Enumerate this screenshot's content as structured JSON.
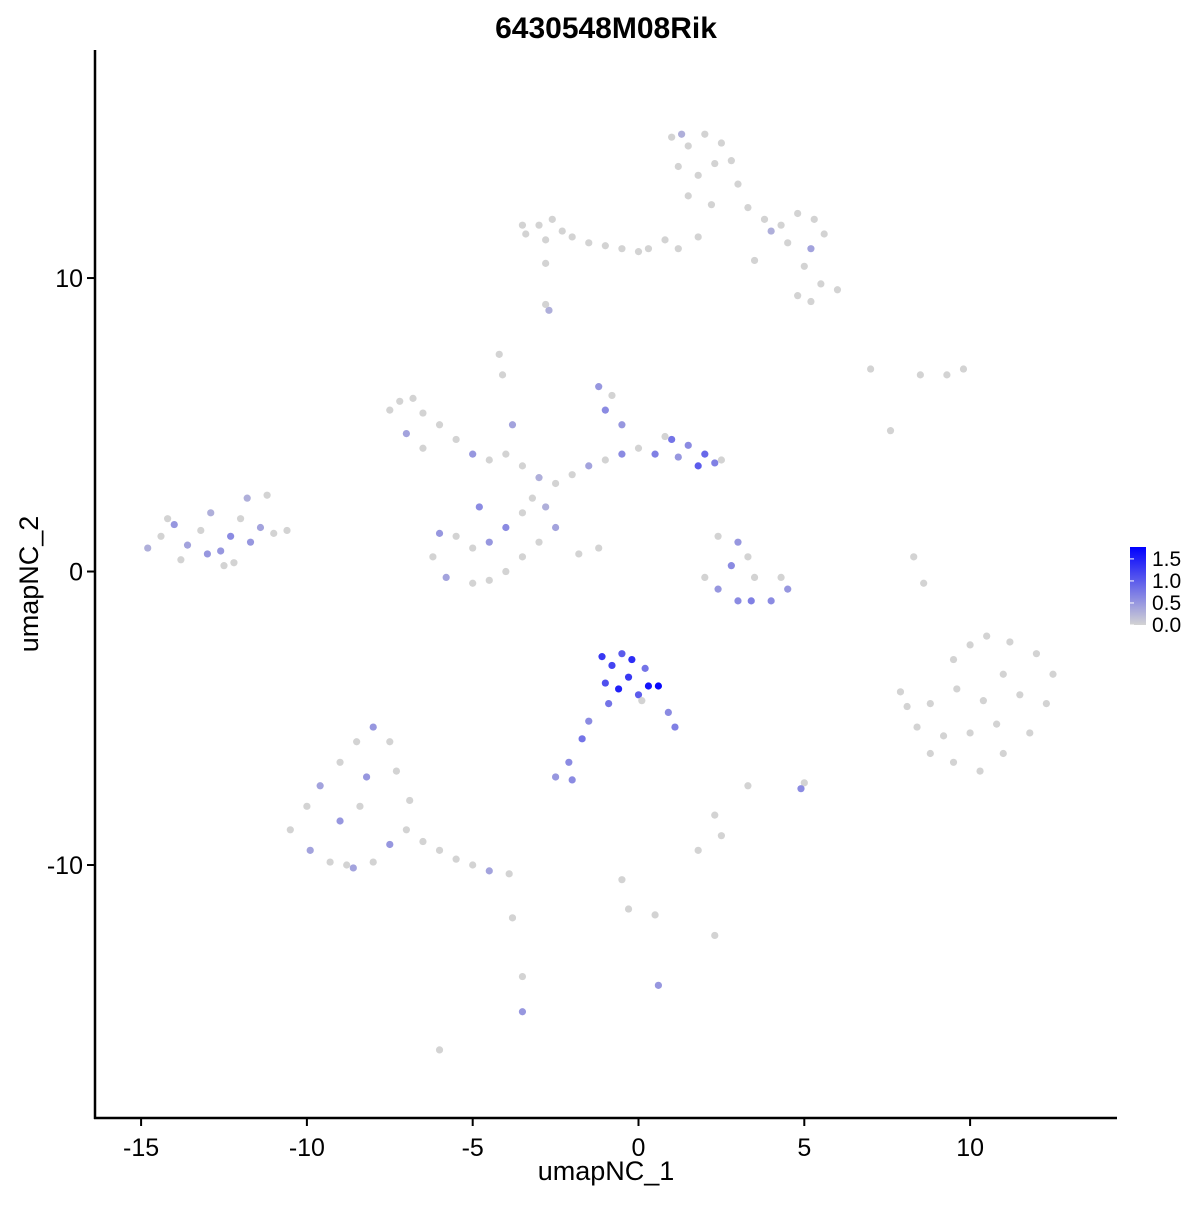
{
  "chart_data": {
    "type": "scatter",
    "title": "6430548M08Rik",
    "xlabel": "umapNC_1",
    "ylabel": "umapNC_2",
    "x": [
      1.0,
      1.5,
      2.0,
      2.5,
      1.2,
      1.8,
      2.3,
      2.8,
      1.5,
      2.2,
      3.0,
      3.3,
      3.8,
      4.3,
      4.8,
      5.3,
      5.6,
      4.5,
      5.2,
      4.0,
      5.0,
      5.5,
      6.0,
      4.8,
      5.2,
      1.2,
      1.8,
      0.8,
      3.5,
      1.3,
      -3.4,
      -3.0,
      -2.6,
      -2.8,
      -2.3,
      -2.0,
      -1.5,
      -1.0,
      -0.5,
      0.0,
      -2.8,
      -2.7,
      -2.8,
      0.3,
      -3.5,
      -7.5,
      -7.2,
      -6.8,
      -6.5,
      -6.0,
      -5.5,
      -7.0,
      -6.5,
      -5.0,
      -4.5,
      -4.0,
      -3.5,
      -3.0,
      -2.5,
      -2.0,
      -1.5,
      -1.0,
      -0.5,
      0.0,
      0.5,
      1.0,
      1.5,
      2.0,
      2.3,
      1.8,
      2.5,
      1.2,
      0.8,
      -1.0,
      -1.2,
      -0.8,
      -0.5,
      -4.2,
      -4.1,
      -3.8,
      -3.5,
      -4.0,
      -4.5,
      -5.0,
      -5.5,
      -6.0,
      -6.2,
      -5.8,
      -5.0,
      -4.5,
      -4.0,
      -3.5,
      -3.0,
      -3.2,
      -2.5,
      -1.8,
      -1.2,
      -2.8,
      -4.8,
      -14.8,
      -14.4,
      -14.0,
      -13.6,
      -13.2,
      -12.9,
      -12.6,
      -12.3,
      -12.0,
      -11.7,
      -11.4,
      -11.2,
      -11.0,
      -10.6,
      -13.8,
      -12.5,
      -13.0,
      -11.8,
      -14.2,
      -12.2,
      2.4,
      3.0,
      3.3,
      2.8,
      3.5,
      4.3,
      4.5,
      4.0,
      3.4,
      3.0,
      2.4,
      2.0,
      9.5,
      10.0,
      10.5,
      11.2,
      12.0,
      12.5,
      12.3,
      11.8,
      11.0,
      10.3,
      9.5,
      8.8,
      8.4,
      8.8,
      9.6,
      10.4,
      11.0,
      11.5,
      10.0,
      10.8,
      9.2,
      7.9,
      8.1,
      8.6,
      8.3,
      -1.1,
      -0.8,
      -0.5,
      -0.2,
      0.2,
      -1.0,
      -0.6,
      -0.3,
      0.0,
      0.3,
      0.6,
      0.1,
      -0.9,
      0.9,
      1.1,
      -1.5,
      -1.7,
      -2.1,
      -2.5,
      -2.0,
      -10.5,
      -10.0,
      -9.6,
      -9.0,
      -8.5,
      -8.0,
      -7.5,
      -7.3,
      -6.9,
      -7.0,
      -7.5,
      -8.0,
      -8.6,
      -9.3,
      -9.9,
      -9.0,
      -8.4,
      -8.2,
      -6.5,
      -6.0,
      -5.5,
      -5.0,
      -4.5,
      -3.9,
      -8.8,
      7.0,
      8.5,
      9.3,
      9.8,
      7.6,
      5.0,
      4.9,
      3.3,
      2.3,
      2.5,
      1.8,
      -0.5,
      -0.3,
      0.5,
      2.3,
      0.6,
      -3.5,
      -3.5,
      -6.0,
      -3.8
    ],
    "y": [
      14.8,
      14.5,
      14.9,
      14.6,
      13.8,
      13.5,
      13.9,
      14.0,
      12.8,
      12.5,
      13.2,
      12.4,
      12.0,
      11.8,
      12.2,
      12.0,
      11.5,
      11.2,
      11.0,
      11.6,
      10.4,
      9.8,
      9.6,
      9.4,
      9.2,
      11.0,
      11.4,
      11.3,
      10.6,
      14.9,
      11.5,
      11.8,
      12.0,
      11.3,
      11.6,
      11.4,
      11.2,
      11.1,
      11.0,
      10.9,
      10.5,
      8.9,
      9.1,
      11.0,
      11.8,
      5.5,
      5.8,
      5.9,
      5.4,
      5.0,
      4.5,
      4.7,
      4.2,
      4.0,
      3.8,
      4.0,
      3.6,
      3.2,
      3.0,
      3.3,
      3.6,
      3.8,
      4.0,
      4.2,
      4.0,
      4.5,
      4.3,
      4.0,
      3.7,
      3.6,
      3.8,
      3.9,
      4.6,
      5.5,
      6.3,
      6.0,
      5.0,
      7.4,
      6.7,
      5.0,
      2.0,
      1.5,
      1.0,
      0.8,
      1.2,
      1.3,
      0.5,
      -0.2,
      -0.4,
      -0.3,
      0.0,
      0.5,
      1.0,
      2.5,
      1.5,
      0.6,
      0.8,
      2.2,
      2.2,
      0.8,
      1.2,
      1.6,
      0.9,
      1.4,
      2.0,
      0.7,
      1.2,
      1.8,
      1.0,
      1.5,
      2.6,
      1.3,
      1.4,
      0.4,
      0.2,
      0.6,
      2.5,
      1.8,
      0.3,
      1.2,
      1.0,
      0.5,
      0.2,
      -0.2,
      -0.2,
      -0.6,
      -1.0,
      -1.0,
      -1.0,
      -0.6,
      -0.2,
      -3.0,
      -2.5,
      -2.2,
      -2.4,
      -2.8,
      -3.5,
      -4.5,
      -5.5,
      -6.2,
      -6.8,
      -6.5,
      -6.2,
      -5.3,
      -4.5,
      -4.0,
      -4.4,
      -3.5,
      -4.2,
      -5.5,
      -5.2,
      -5.6,
      -4.1,
      -4.6,
      -0.4,
      0.5,
      -2.9,
      -3.2,
      -2.8,
      -3.0,
      -3.3,
      -3.8,
      -4.0,
      -3.6,
      -4.2,
      -3.9,
      -3.9,
      -4.4,
      -4.5,
      -4.8,
      -5.3,
      -5.1,
      -5.7,
      -6.5,
      -7.0,
      -7.1,
      -8.8,
      -8.0,
      -7.3,
      -6.5,
      -5.8,
      -5.3,
      -5.8,
      -6.8,
      -7.8,
      -8.8,
      -9.3,
      -9.9,
      -10.1,
      -9.9,
      -9.5,
      -8.5,
      -8.0,
      -7.0,
      -9.2,
      -9.5,
      -9.8,
      -10.0,
      -10.2,
      -10.3,
      -10.0,
      6.9,
      6.7,
      6.7,
      6.9,
      4.8,
      -7.2,
      -7.4,
      -7.3,
      -8.3,
      -9.0,
      -9.5,
      -10.5,
      -11.5,
      -11.7,
      -12.4,
      -14.1,
      -15.0,
      -13.8,
      -16.3,
      -11.8
    ],
    "expression": [
      0,
      0,
      0,
      0,
      0,
      0,
      0,
      0,
      0,
      0,
      0,
      0,
      0,
      0,
      0,
      0,
      0,
      0,
      0.4,
      0.3,
      0,
      0,
      0,
      0,
      0,
      0,
      0,
      0,
      0,
      0.3,
      0,
      0,
      0,
      0,
      0,
      0,
      0,
      0,
      0,
      0,
      0,
      0.3,
      0,
      0,
      0,
      0,
      0,
      0,
      0,
      0,
      0,
      0.4,
      0,
      0.5,
      0,
      0,
      0,
      0.3,
      0,
      0,
      0.4,
      0,
      0.6,
      0,
      0.7,
      0.8,
      0.6,
      0.9,
      0.7,
      1.0,
      0,
      0.5,
      0,
      0.6,
      0.5,
      0,
      0.5,
      0,
      0,
      0.4,
      0,
      0.6,
      0.5,
      0,
      0,
      0.5,
      0,
      0.4,
      0,
      0,
      0,
      0,
      0,
      0,
      0.4,
      0,
      0,
      0.3,
      0.6,
      0.3,
      0,
      0.5,
      0.4,
      0,
      0.3,
      0.5,
      0.6,
      0,
      0.5,
      0.4,
      0,
      0,
      0,
      0,
      0,
      0.5,
      0.3,
      0,
      0,
      0,
      0.5,
      0,
      0.6,
      0,
      0,
      0.5,
      0.6,
      0.7,
      0.6,
      0.5,
      0,
      0,
      0,
      0,
      0,
      0,
      0,
      0,
      0,
      0,
      0,
      0,
      0,
      0,
      0,
      0,
      0,
      0,
      0,
      0,
      0,
      0,
      0,
      0,
      0,
      0,
      1.3,
      1.2,
      1.0,
      1.4,
      0.8,
      1.1,
      1.5,
      1.3,
      1.0,
      1.6,
      1.7,
      0,
      0.8,
      0.6,
      0.7,
      0.6,
      0.8,
      0.6,
      0.5,
      0.6,
      0,
      0,
      0.4,
      0,
      0,
      0.5,
      0,
      0,
      0,
      0,
      0.5,
      0,
      0.4,
      0,
      0.4,
      0.5,
      0,
      0.5,
      0,
      0,
      0,
      0,
      0.4,
      0,
      0,
      0,
      0,
      0,
      0,
      0,
      0,
      0.6,
      0,
      0,
      0,
      0,
      0,
      0,
      0,
      0,
      0.5,
      0.5,
      0,
      0,
      0
    ],
    "xlim": [
      -16.39,
      14.43
    ],
    "ylim": [
      -18.62,
      17.77
    ],
    "xticks": [
      -15,
      -10,
      -5,
      0,
      5,
      10
    ],
    "yticks": [
      -10,
      0,
      10
    ],
    "color_low": "#d3d3d3",
    "color_high": "#0000ff",
    "color_lim": [
      0,
      1.77
    ],
    "colorbar_ticks": [
      {
        "value": 0,
        "label": "0.0"
      },
      {
        "value": 0.5,
        "label": "0.5"
      },
      {
        "value": 1,
        "label": "1.0"
      },
      {
        "value": 1.5,
        "label": "1.5"
      }
    ]
  }
}
